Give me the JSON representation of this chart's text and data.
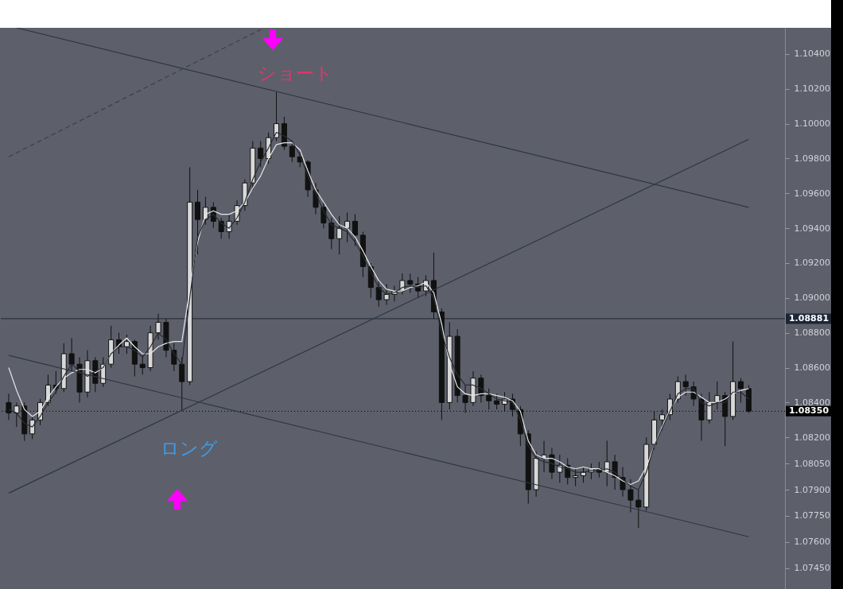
{
  "chart_data": {
    "type": "candlestick",
    "tick_labels": "y",
    "ylim": [
      1.0733,
      1.1055
    ],
    "yticks": [
      {
        "value": 1.104,
        "label": "1.10400"
      },
      {
        "value": 1.102,
        "label": "1.10200"
      },
      {
        "value": 1.1,
        "label": "1.10000"
      },
      {
        "value": 1.098,
        "label": "1.09800"
      },
      {
        "value": 1.096,
        "label": "1.09600"
      },
      {
        "value": 1.094,
        "label": "1.09400"
      },
      {
        "value": 1.092,
        "label": "1.09200"
      },
      {
        "value": 1.09,
        "label": "1.09000"
      },
      {
        "value": 1.088,
        "label": "1.08800"
      },
      {
        "value": 1.086,
        "label": "1.08600"
      },
      {
        "value": 1.084,
        "label": "1.08400"
      },
      {
        "value": 1.082,
        "label": "1.08200"
      },
      {
        "value": 1.0805,
        "label": "1.08050"
      },
      {
        "value": 1.079,
        "label": "1.07900"
      },
      {
        "value": 1.0775,
        "label": "1.07750"
      },
      {
        "value": 1.076,
        "label": "1.07600"
      },
      {
        "value": 1.0745,
        "label": "1.07450"
      }
    ],
    "categories": [
      null,
      null,
      null,
      null,
      null,
      null,
      null,
      null,
      null,
      null,
      null,
      null,
      null,
      null,
      null,
      null,
      null,
      null,
      null,
      null,
      null,
      null,
      null,
      null,
      null,
      null,
      null,
      null,
      null,
      null,
      null,
      null,
      null,
      null,
      null,
      null,
      null,
      null,
      null,
      null,
      null,
      null,
      null,
      null,
      null,
      null,
      null,
      null,
      null,
      null,
      null,
      null,
      null,
      null,
      null,
      null,
      null,
      null,
      null,
      null,
      null,
      null,
      null,
      null,
      null,
      null,
      null,
      null,
      null,
      null,
      null,
      null,
      null,
      null,
      null,
      null,
      null,
      null,
      null,
      null,
      null,
      null,
      null,
      null,
      null,
      null,
      null,
      null,
      null,
      null,
      null,
      null,
      null,
      null,
      null
    ],
    "ohlc": [
      [
        1.084,
        1.0845,
        1.083,
        1.0834
      ],
      [
        1.0834,
        1.084,
        1.0826,
        1.0838
      ],
      [
        1.0838,
        1.084,
        1.0818,
        1.0822
      ],
      [
        1.0822,
        1.0832,
        1.0819,
        1.083
      ],
      [
        1.083,
        1.0842,
        1.0827,
        1.084
      ],
      [
        1.084,
        1.0856,
        1.0838,
        1.085
      ],
      [
        1.085,
        1.0858,
        1.0845,
        1.0848
      ],
      [
        1.0848,
        1.0874,
        1.0846,
        1.0868
      ],
      [
        1.0868,
        1.0877,
        1.0858,
        1.0862
      ],
      [
        1.0862,
        1.0866,
        1.084,
        1.0846
      ],
      [
        1.0846,
        1.087,
        1.0843,
        1.0864
      ],
      [
        1.0864,
        1.0866,
        1.0846,
        1.0851
      ],
      [
        1.0851,
        1.0866,
        1.0849,
        1.0862
      ],
      [
        1.0862,
        1.0884,
        1.086,
        1.0876
      ],
      [
        1.0876,
        1.088,
        1.0868,
        1.0872
      ],
      [
        1.0872,
        1.0879,
        1.0868,
        1.0875
      ],
      [
        1.0875,
        1.0876,
        1.0855,
        1.0862
      ],
      [
        1.0862,
        1.0867,
        1.0856,
        1.086
      ],
      [
        1.086,
        1.0884,
        1.0858,
        1.088
      ],
      [
        1.088,
        1.0891,
        1.0876,
        1.0886
      ],
      [
        1.0886,
        1.0888,
        1.0866,
        1.087
      ],
      [
        1.087,
        1.0874,
        1.0858,
        1.0862
      ],
      [
        1.0862,
        1.0866,
        1.0835,
        1.0852
      ],
      [
        1.0852,
        1.0975,
        1.085,
        1.0955
      ],
      [
        1.0955,
        1.0962,
        1.0925,
        1.0945
      ],
      [
        1.0945,
        1.0958,
        1.0942,
        1.0952
      ],
      [
        1.0952,
        1.0955,
        1.094,
        1.0944
      ],
      [
        1.0944,
        1.0946,
        1.0934,
        1.0938
      ],
      [
        1.0938,
        1.0948,
        1.0934,
        1.0944
      ],
      [
        1.0944,
        1.0956,
        1.0942,
        1.0953
      ],
      [
        1.0953,
        1.0968,
        1.095,
        1.0966
      ],
      [
        1.0966,
        1.099,
        1.0962,
        1.0986
      ],
      [
        1.0986,
        1.099,
        1.0975,
        1.098
      ],
      [
        1.098,
        1.0995,
        1.0977,
        1.0992
      ],
      [
        1.0992,
        1.1018,
        1.099,
        1.1
      ],
      [
        1.1,
        1.1004,
        1.0985,
        1.0987
      ],
      [
        1.0987,
        1.099,
        1.0978,
        1.0981
      ],
      [
        1.0981,
        1.0984,
        1.0975,
        1.0978
      ],
      [
        1.0978,
        1.0979,
        1.0958,
        1.0962
      ],
      [
        1.0962,
        1.0966,
        1.0948,
        1.0952
      ],
      [
        1.0952,
        1.0955,
        1.094,
        1.0943
      ],
      [
        1.0943,
        1.0946,
        1.0928,
        1.0934
      ],
      [
        1.0934,
        1.0947,
        1.0925,
        1.094
      ],
      [
        1.094,
        1.0949,
        1.0932,
        1.0944
      ],
      [
        1.0944,
        1.0948,
        1.093,
        1.0936
      ],
      [
        1.0936,
        1.0938,
        1.0912,
        1.0918
      ],
      [
        1.0918,
        1.092,
        1.09,
        1.0906
      ],
      [
        1.0906,
        1.091,
        1.0895,
        1.0899
      ],
      [
        1.0899,
        1.0908,
        1.0896,
        1.0902
      ],
      [
        1.0902,
        1.0907,
        1.0898,
        1.0904
      ],
      [
        1.0904,
        1.0914,
        1.0902,
        1.091
      ],
      [
        1.091,
        1.0914,
        1.0903,
        1.0908
      ],
      [
        1.0908,
        1.0912,
        1.09,
        1.0904
      ],
      [
        1.0904,
        1.0913,
        1.0901,
        1.091
      ],
      [
        1.091,
        1.0926,
        1.0888,
        1.0892
      ],
      [
        1.0892,
        1.0894,
        1.083,
        1.084
      ],
      [
        1.084,
        1.0886,
        1.0836,
        1.0878
      ],
      [
        1.0878,
        1.0882,
        1.084,
        1.0844
      ],
      [
        1.0844,
        1.085,
        1.0834,
        1.084
      ],
      [
        1.084,
        1.0858,
        1.0838,
        1.0854
      ],
      [
        1.0854,
        1.0856,
        1.084,
        1.0844
      ],
      [
        1.0844,
        1.0848,
        1.0836,
        1.0841
      ],
      [
        1.0841,
        1.0845,
        1.0836,
        1.0839
      ],
      [
        1.0839,
        1.0846,
        1.0835,
        1.0842
      ],
      [
        1.0842,
        1.0845,
        1.0832,
        1.0836
      ],
      [
        1.0836,
        1.0838,
        1.0815,
        1.0822
      ],
      [
        1.0822,
        1.0824,
        1.0782,
        1.079
      ],
      [
        1.079,
        1.0812,
        1.0786,
        1.0808
      ],
      [
        1.0808,
        1.0818,
        1.08,
        1.081
      ],
      [
        1.081,
        1.0814,
        1.0796,
        1.08
      ],
      [
        1.08,
        1.081,
        1.0794,
        1.0804
      ],
      [
        1.0804,
        1.0808,
        1.0793,
        1.0797
      ],
      [
        1.0797,
        1.0802,
        1.0792,
        1.0798
      ],
      [
        1.0798,
        1.0803,
        1.0794,
        1.08
      ],
      [
        1.08,
        1.0805,
        1.0796,
        1.0802
      ],
      [
        1.0802,
        1.0806,
        1.0797,
        1.08
      ],
      [
        1.08,
        1.0818,
        1.0792,
        1.0806
      ],
      [
        1.0806,
        1.081,
        1.079,
        1.0797
      ],
      [
        1.0797,
        1.0803,
        1.0786,
        1.079
      ],
      [
        1.079,
        1.0796,
        1.0777,
        1.0784
      ],
      [
        1.0784,
        1.079,
        1.0768,
        1.078
      ],
      [
        1.078,
        1.082,
        1.0778,
        1.0816
      ],
      [
        1.0816,
        1.0835,
        1.0813,
        1.083
      ],
      [
        1.083,
        1.0836,
        1.0824,
        1.0833
      ],
      [
        1.0833,
        1.0845,
        1.083,
        1.0842
      ],
      [
        1.0842,
        1.0855,
        1.084,
        1.0852
      ],
      [
        1.0852,
        1.0856,
        1.0844,
        1.0849
      ],
      [
        1.0849,
        1.0852,
        1.0838,
        1.0842
      ],
      [
        1.0842,
        1.0845,
        1.0818,
        1.083
      ],
      [
        1.083,
        1.0846,
        1.0828,
        1.084
      ],
      [
        1.084,
        1.0852,
        1.0836,
        1.0844
      ],
      [
        1.0844,
        1.0846,
        1.0815,
        1.0832
      ],
      [
        1.0832,
        1.0875,
        1.083,
        1.0852
      ],
      [
        1.0852,
        1.0854,
        1.084,
        1.0848
      ],
      [
        1.0848,
        1.085,
        1.0834,
        1.0835
      ]
    ],
    "series": [
      {
        "type": "line",
        "color": "#e6e6e6",
        "line_style": "solid",
        "values": [
          1.086,
          1.0847,
          1.0836,
          1.0832,
          1.0835,
          1.0843,
          1.0849,
          1.0854,
          1.0857,
          1.0859,
          1.0859,
          1.0857,
          1.086,
          1.0868,
          1.0873,
          1.0877,
          1.0872,
          1.0868,
          1.0868,
          1.0872,
          1.0874,
          1.0875,
          1.0875,
          1.0905,
          1.0932,
          1.0948,
          1.095,
          1.0948,
          1.0948,
          1.095,
          1.0955,
          1.0963,
          1.097,
          1.098,
          1.0988,
          1.0989,
          1.0989,
          1.0985,
          1.0973,
          1.0962,
          1.0955,
          1.0948,
          1.0942,
          1.094,
          1.0935,
          1.0927,
          1.0918,
          1.091,
          1.0905,
          1.0904,
          1.0904,
          1.0906,
          1.0907,
          1.0909,
          1.0903,
          1.0885,
          1.0862,
          1.0849,
          1.0845,
          1.0844,
          1.0845,
          1.0845,
          1.0844,
          1.0843,
          1.0841,
          1.0835,
          1.0818,
          1.081,
          1.0808,
          1.0808,
          1.0806,
          1.0803,
          1.0802,
          1.0803,
          1.0802,
          1.0802,
          1.08,
          1.0798,
          1.0795,
          1.0793,
          1.0795,
          1.0803,
          1.0815,
          1.0826,
          1.0836,
          1.0843,
          1.0846,
          1.0846,
          1.0843,
          1.084,
          1.084,
          1.0842,
          1.0845,
          1.0847,
          1.0848
        ]
      },
      {
        "type": "line",
        "color": "#2a2c33",
        "line_style": "solid",
        "values": [
          1.0836,
          1.0834,
          1.0828,
          1.0826,
          1.0832,
          1.084,
          1.0846,
          1.0855,
          1.0862,
          1.0858,
          1.0855,
          1.0858,
          1.086,
          1.0868,
          1.0872,
          1.0872,
          1.087,
          1.0866,
          1.0872,
          1.088,
          1.0876,
          1.0868,
          1.0862,
          1.09,
          1.0935,
          1.0945,
          1.0948,
          1.0943,
          1.094,
          1.0946,
          1.0955,
          1.0968,
          1.0978,
          1.0986,
          1.0995,
          1.0993,
          1.099,
          1.0982,
          1.097,
          1.096,
          1.095,
          1.0942,
          1.094,
          1.0938,
          1.0932,
          1.0924,
          1.0915,
          1.0906,
          1.0902,
          1.0903,
          1.0906,
          1.0907,
          1.0906,
          1.0907,
          1.09,
          1.088,
          1.0866,
          1.0856,
          1.085,
          1.085,
          1.0848,
          1.0845,
          1.0842,
          1.0841,
          1.084,
          1.083,
          1.0815,
          1.0808,
          1.0806,
          1.0805,
          1.0803,
          1.0802,
          1.08,
          1.08,
          1.0801,
          1.0801,
          1.0802,
          1.08,
          1.0796,
          1.0792,
          1.079,
          1.08,
          1.0815,
          1.0825,
          1.0835,
          1.0845,
          1.0848,
          1.0848,
          1.084,
          1.0838,
          1.084,
          1.084,
          1.0846,
          1.0846,
          1.0842
        ]
      },
      {
        "type": "line",
        "color": "#2f3542",
        "line_style": "solid",
        "values": [
          null,
          1.1055,
          null,
          null,
          null,
          null,
          null,
          null,
          null,
          null,
          null,
          null,
          null,
          null,
          null,
          null,
          null,
          null,
          null,
          null,
          null,
          null,
          null,
          null,
          null,
          null,
          null,
          null,
          null,
          null,
          null,
          null,
          null,
          null,
          null,
          null,
          null,
          null,
          null,
          null,
          null,
          null,
          null,
          null,
          null,
          null,
          null,
          null,
          null,
          null,
          null,
          null,
          null,
          null,
          null,
          null,
          null,
          null,
          null,
          null,
          null,
          null,
          null,
          null,
          null,
          null,
          null,
          null,
          null,
          null,
          null,
          null,
          null,
          null,
          null,
          null,
          null,
          null,
          null,
          null,
          null,
          null,
          null,
          null,
          null,
          null,
          null,
          null,
          null,
          null,
          null,
          null,
          null,
          null,
          1.0952
        ]
      },
      {
        "type": "line",
        "color": "#2f3542",
        "line_style": "solid",
        "values": [
          1.0867,
          null,
          null,
          null,
          null,
          null,
          null,
          null,
          null,
          null,
          null,
          null,
          null,
          null,
          null,
          null,
          null,
          null,
          null,
          null,
          null,
          null,
          null,
          null,
          null,
          null,
          null,
          null,
          null,
          null,
          null,
          null,
          null,
          null,
          null,
          null,
          null,
          null,
          null,
          null,
          null,
          null,
          null,
          null,
          null,
          null,
          null,
          null,
          null,
          null,
          null,
          null,
          null,
          null,
          null,
          null,
          null,
          null,
          null,
          null,
          null,
          null,
          null,
          null,
          null,
          null,
          null,
          null,
          null,
          null,
          null,
          null,
          null,
          null,
          null,
          null,
          null,
          null,
          null,
          null,
          null,
          null,
          null,
          null,
          null,
          null,
          null,
          null,
          null,
          null,
          null,
          null,
          null,
          null,
          1.0763
        ]
      },
      {
        "type": "line",
        "color": "#2f3542",
        "line_style": "solid",
        "values": [
          1.0788,
          null,
          null,
          null,
          null,
          null,
          null,
          null,
          null,
          null,
          null,
          null,
          null,
          null,
          null,
          null,
          null,
          null,
          null,
          null,
          null,
          null,
          null,
          null,
          null,
          null,
          null,
          null,
          null,
          null,
          null,
          null,
          null,
          null,
          null,
          null,
          null,
          null,
          null,
          null,
          null,
          null,
          null,
          null,
          null,
          null,
          null,
          null,
          null,
          null,
          null,
          null,
          null,
          null,
          null,
          null,
          null,
          null,
          null,
          null,
          null,
          null,
          null,
          null,
          null,
          null,
          null,
          null,
          null,
          null,
          null,
          null,
          null,
          null,
          null,
          null,
          null,
          null,
          null,
          null,
          null,
          null,
          null,
          null,
          null,
          null,
          null,
          null,
          null,
          null,
          null,
          null,
          null,
          null,
          1.0991
        ]
      },
      {
        "type": "line",
        "color": "#3a3f4b",
        "line_style": "dashed",
        "values": [
          1.0981,
          null,
          null,
          null,
          null,
          null,
          null,
          null,
          null,
          null,
          null,
          null,
          null,
          null,
          null,
          null,
          null,
          null,
          null,
          null,
          null,
          null,
          null,
          null,
          null,
          null,
          null,
          null,
          null,
          null,
          null,
          null,
          1.1054,
          null,
          null,
          null,
          null,
          null,
          null,
          null,
          null,
          null,
          null,
          null,
          null,
          null,
          null,
          null,
          null,
          null,
          null,
          null,
          null,
          null,
          null,
          null,
          null,
          null,
          null,
          null,
          null,
          null,
          null,
          null,
          null,
          null,
          null,
          null,
          null,
          null,
          null,
          null,
          null,
          null,
          null,
          null,
          null,
          null,
          null,
          null,
          null,
          null,
          null,
          null,
          null,
          null,
          null,
          null,
          null,
          null,
          null,
          null,
          null,
          null,
          null
        ]
      }
    ],
    "ref_lines": [
      {
        "axis": "y",
        "value": 1.08881,
        "label": "1.08881",
        "color": "#1c2636",
        "line_style": "solid"
      },
      {
        "axis": "y",
        "value": 1.0835,
        "label": "1.08350",
        "color": "#000000",
        "line_style": "dotted"
      }
    ],
    "annotations": [
      "ショート",
      "ロング"
    ]
  }
}
